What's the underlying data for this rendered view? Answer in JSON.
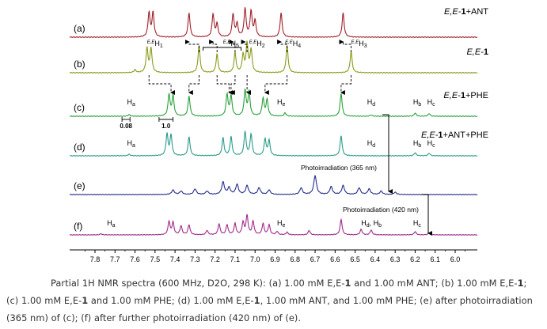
{
  "chart_data": {
    "type": "line",
    "xaxis": {
      "min": 6.0,
      "max": 7.8,
      "reversed": true,
      "ticks": [
        "7.8",
        "7.7",
        "7.6",
        "7.5",
        "7.4",
        "7.3",
        "7.2",
        "7.1",
        "7.0",
        "6.9",
        "6.8",
        "6.7",
        "6.6",
        "6.5",
        "6.4",
        "6.3",
        "6.2",
        "6.1",
        "6.0"
      ]
    },
    "grid": false,
    "series": [
      {
        "id": "a",
        "label": "(a)",
        "name": "E,E-1+ANT",
        "name_parts": [
          "E,E-",
          "1",
          "+ANT"
        ],
        "color": "#a0202a",
        "peaks": [
          [
            7.53,
            0.85
          ],
          [
            7.51,
            0.85
          ],
          [
            7.33,
            0.85
          ],
          [
            7.21,
            0.8
          ],
          [
            7.19,
            0.45
          ],
          [
            7.11,
            0.8
          ],
          [
            7.09,
            0.45
          ],
          [
            7.05,
            1.0
          ],
          [
            7.02,
            0.9
          ],
          [
            7.0,
            0.55
          ],
          [
            6.87,
            0.85
          ],
          [
            6.56,
            0.85
          ]
        ]
      },
      {
        "id": "b",
        "label": "(b)",
        "name": "E,E-1",
        "name_parts": [
          "E,E-",
          "1",
          ""
        ],
        "color": "#8c9a1a",
        "peaks": [
          [
            7.54,
            0.85
          ],
          [
            7.52,
            0.85
          ],
          [
            7.28,
            0.95
          ],
          [
            7.19,
            0.65
          ],
          [
            7.1,
            0.7
          ],
          [
            7.06,
            0.6
          ],
          [
            7.04,
            1.0
          ],
          [
            7.02,
            0.8
          ],
          [
            6.84,
            0.95
          ],
          [
            6.52,
            0.75
          ],
          [
            7.6,
            0.1
          ]
        ]
      },
      {
        "id": "c",
        "label": "(c)",
        "name": "E,E-1+PHE",
        "name_parts": [
          "E,E-",
          "1",
          "+PHE"
        ],
        "color": "#2aa03a",
        "peaks": [
          [
            7.43,
            0.8
          ],
          [
            7.41,
            0.75
          ],
          [
            7.33,
            0.75
          ],
          [
            7.14,
            0.8
          ],
          [
            7.12,
            0.75
          ],
          [
            7.05,
            0.95
          ],
          [
            7.03,
            0.9
          ],
          [
            6.96,
            0.65
          ],
          [
            6.94,
            0.6
          ],
          [
            6.85,
            0.12
          ],
          [
            6.57,
            0.85
          ],
          [
            6.42,
            0.05
          ],
          [
            6.2,
            0.12
          ],
          [
            6.13,
            0.1
          ],
          [
            7.63,
            0.06
          ]
        ]
      },
      {
        "id": "d",
        "label": "(d)",
        "name": "E,E-1+ANT+PHE",
        "name_parts": [
          "E,E-",
          "1",
          "+ANT+PHE"
        ],
        "color": "#2a9a8a",
        "peaks": [
          [
            7.44,
            0.85
          ],
          [
            7.42,
            0.8
          ],
          [
            7.33,
            0.75
          ],
          [
            7.16,
            0.7
          ],
          [
            7.12,
            0.75
          ],
          [
            7.05,
            0.95
          ],
          [
            7.02,
            0.85
          ],
          [
            6.95,
            0.65
          ],
          [
            6.93,
            0.6
          ],
          [
            6.57,
            0.8
          ],
          [
            6.2,
            0.12
          ],
          [
            6.13,
            0.1
          ],
          [
            7.63,
            0.06
          ]
        ]
      },
      {
        "id": "e",
        "label": "(e)",
        "name": "",
        "color": "#242c8a",
        "peaks": [
          [
            7.41,
            0.2
          ],
          [
            7.37,
            0.15
          ],
          [
            7.3,
            0.25
          ],
          [
            7.24,
            0.15
          ],
          [
            7.16,
            0.55
          ],
          [
            7.13,
            0.3
          ],
          [
            7.09,
            0.45
          ],
          [
            7.04,
            0.4
          ],
          [
            6.98,
            0.3
          ],
          [
            6.93,
            0.2
          ],
          [
            6.77,
            0.3
          ],
          [
            6.7,
            0.85
          ],
          [
            6.62,
            0.35
          ],
          [
            6.56,
            0.4
          ],
          [
            6.48,
            0.3
          ],
          [
            6.43,
            0.25
          ],
          [
            6.37,
            0.15
          ],
          [
            6.3,
            0.1
          ]
        ]
      },
      {
        "id": "f",
        "label": "(f)",
        "name": "",
        "color": "#a02a8a",
        "peaks": [
          [
            7.43,
            0.6
          ],
          [
            7.41,
            0.55
          ],
          [
            7.37,
            0.4
          ],
          [
            7.33,
            0.45
          ],
          [
            7.24,
            0.2
          ],
          [
            7.18,
            0.5
          ],
          [
            7.14,
            0.45
          ],
          [
            7.1,
            0.5
          ],
          [
            7.06,
            0.55
          ],
          [
            7.04,
            0.85
          ],
          [
            7.01,
            0.6
          ],
          [
            6.96,
            0.5
          ],
          [
            6.93,
            0.45
          ],
          [
            6.89,
            0.15
          ],
          [
            6.73,
            0.2
          ],
          [
            6.57,
            0.7
          ],
          [
            6.47,
            0.25
          ],
          [
            6.42,
            0.22
          ],
          [
            6.2,
            0.15
          ],
          [
            6.13,
            0.1
          ],
          [
            7.77,
            0.05
          ],
          [
            6.84,
            0.12
          ]
        ]
      }
    ],
    "annotations": {
      "peak_labels": [
        {
          "spectrum": "b",
          "ppm": 7.54,
          "prefix": "E,E",
          "text": "H",
          "sub": "1"
        },
        {
          "spectrum": "b",
          "ppm": 7.16,
          "prefix": "E,E",
          "text": "H",
          "sub": "5"
        },
        {
          "spectrum": "b",
          "ppm": 7.03,
          "prefix": "E,E",
          "text": "H",
          "sub": "2"
        },
        {
          "spectrum": "b",
          "ppm": 6.85,
          "prefix": "E,E",
          "text": "H",
          "sub": "4"
        },
        {
          "spectrum": "b",
          "ppm": 6.52,
          "prefix": "E,E",
          "text": "H",
          "sub": "3"
        },
        {
          "spectrum": "c",
          "ppm": 7.64,
          "text": "H",
          "sub": "a"
        },
        {
          "spectrum": "c",
          "ppm": 6.89,
          "text": "H",
          "sub": "e"
        },
        {
          "spectrum": "c",
          "ppm": 6.44,
          "text": "H",
          "sub": "d"
        },
        {
          "spectrum": "c",
          "ppm": 6.21,
          "text": "H",
          "sub": "b"
        },
        {
          "spectrum": "c",
          "ppm": 6.14,
          "text": "H",
          "sub": "c"
        },
        {
          "spectrum": "d",
          "ppm": 7.64,
          "text": "H",
          "sub": "a"
        },
        {
          "spectrum": "d",
          "ppm": 6.44,
          "text": "H",
          "sub": "d"
        },
        {
          "spectrum": "d",
          "ppm": 6.21,
          "text": "H",
          "sub": "b"
        },
        {
          "spectrum": "d",
          "ppm": 6.14,
          "text": "H",
          "sub": "c"
        },
        {
          "spectrum": "f",
          "ppm": 7.74,
          "text": "H",
          "sub": "a"
        },
        {
          "spectrum": "f",
          "ppm": 6.89,
          "text": "H",
          "sub": "e"
        },
        {
          "spectrum": "f",
          "ppm": 6.47,
          "text": "H",
          "sub": "d",
          "extra": ", H",
          "extra_sub": "b"
        },
        {
          "spectrum": "f",
          "ppm": 6.21,
          "text": "H",
          "sub": "c"
        }
      ],
      "shift_a": "0.08",
      "shift_b": "1.0",
      "photo_1": "Photoirradiation (365 nm)",
      "photo_2": "Photoirradiation (420 nm)"
    }
  },
  "caption": {
    "t1": "Partial 1H NMR spectra (600 MHz, D2O, 298 K): (a) 1.00 mM E,E-",
    "b1": "1",
    "t2": " and 1.00 mM ANT; (b) 1.00 mM E,E-",
    "b2": "1",
    "t3": "; (c) 1.00 mM E,E-",
    "b3": "1",
    "t4": " and 1.00 mM PHE; (d) 1.00 mM E,E-",
    "b4": "1",
    "t5": ", 1.00 mM ANT, and 1.00 mM PHE; (e) after photoirradiation (365 nm) of (c); (f) after further photoirradiation (420 nm) of (e)."
  }
}
